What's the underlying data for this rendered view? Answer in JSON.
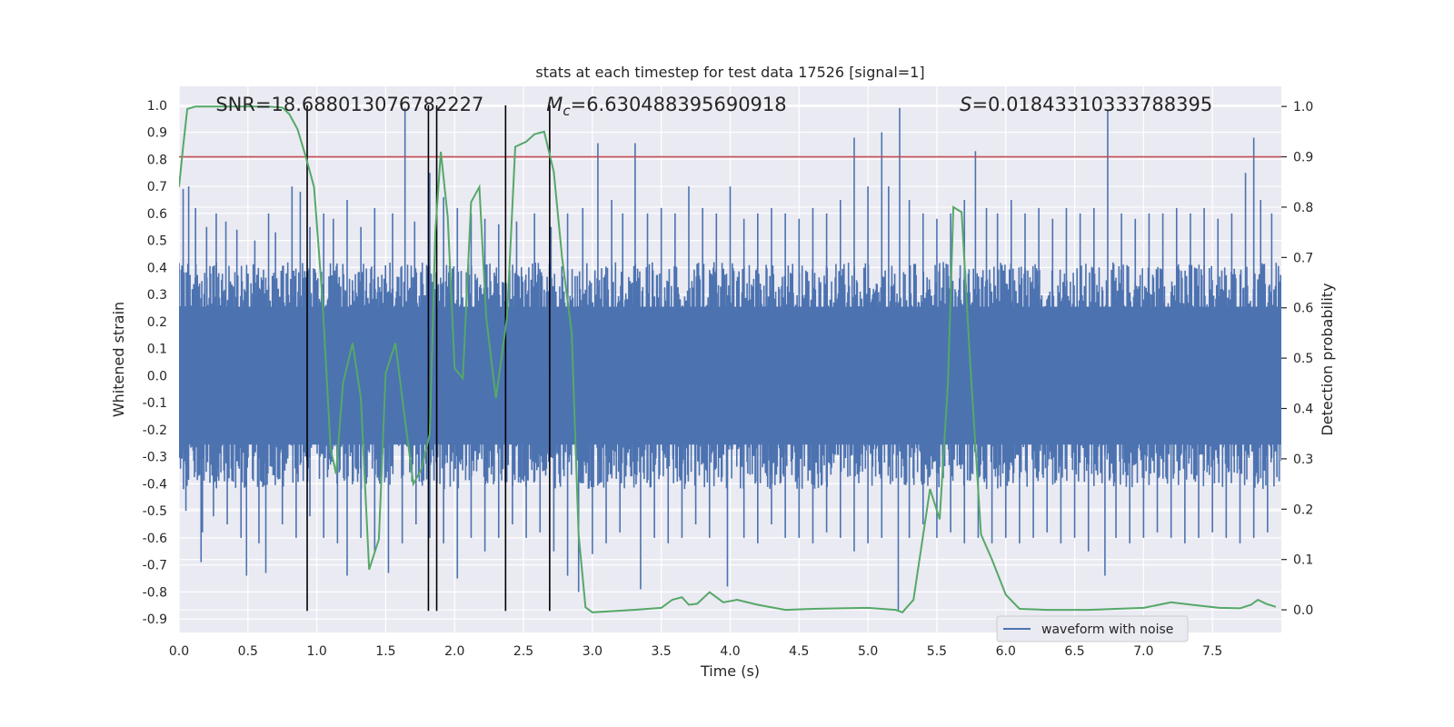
{
  "chart_data": {
    "type": "line",
    "title": "stats at each timestep for test data 17526 [signal=1]",
    "xlabel": "Time (s)",
    "ylabel": "Whitened strain",
    "y2label": "Detection probability",
    "xlim": [
      0.0,
      8.0
    ],
    "ylim": [
      -0.95,
      1.07
    ],
    "y2lim": [
      -0.045,
      1.04
    ],
    "x_ticks": [
      0.0,
      0.5,
      1.0,
      1.5,
      2.0,
      2.5,
      3.0,
      3.5,
      4.0,
      4.5,
      5.0,
      5.5,
      6.0,
      6.5,
      7.0,
      7.5
    ],
    "y_ticks": [
      -0.9,
      -0.8,
      -0.7,
      -0.6,
      -0.5,
      -0.4,
      -0.3,
      -0.2,
      -0.1,
      0.0,
      0.1,
      0.2,
      0.3,
      0.4,
      0.5,
      0.6,
      0.7,
      0.8,
      0.9,
      1.0
    ],
    "y2_ticks": [
      0.0,
      0.1,
      0.2,
      0.3,
      0.4,
      0.5,
      0.6,
      0.7,
      0.8,
      0.9,
      1.0
    ],
    "grid": true,
    "legend_position": "lower-right",
    "annotations": [
      {
        "name": "snr",
        "pieces": [
          {
            "t": "SNR=18.688013076782227",
            "i": false
          }
        ],
        "x": 0.2
      },
      {
        "name": "chirp-mass",
        "pieces": [
          {
            "t": "M",
            "i": true
          },
          {
            "t": "c",
            "i": true,
            "sub": true
          },
          {
            "t": "=6.630488395690918",
            "i": false
          }
        ],
        "x": 2.6
      },
      {
        "name": "spin",
        "pieces": [
          {
            "t": "S",
            "i": true
          },
          {
            "t": "=0.01843310333788395",
            "i": false
          }
        ],
        "x": 5.6
      }
    ],
    "waveform": {
      "name": "waveform with noise",
      "color": "#4c72b0",
      "bulk_envelope": {
        "lower": -0.3,
        "upper": 0.3
      },
      "spikes_up": [
        [
          0.03,
          0.69
        ],
        [
          0.07,
          0.7
        ],
        [
          0.12,
          0.62
        ],
        [
          0.2,
          0.55
        ],
        [
          0.27,
          0.6
        ],
        [
          0.34,
          0.57
        ],
        [
          0.42,
          0.54
        ],
        [
          0.55,
          0.5
        ],
        [
          0.65,
          0.6
        ],
        [
          0.7,
          0.53
        ],
        [
          0.82,
          0.7
        ],
        [
          0.88,
          0.68
        ],
        [
          0.95,
          0.55
        ],
        [
          1.05,
          0.6
        ],
        [
          1.12,
          0.58
        ],
        [
          1.22,
          0.65
        ],
        [
          1.32,
          0.55
        ],
        [
          1.42,
          0.62
        ],
        [
          1.55,
          0.6
        ],
        [
          1.64,
          0.99
        ],
        [
          1.71,
          0.57
        ],
        [
          1.82,
          0.75
        ],
        [
          1.92,
          0.66
        ],
        [
          2.02,
          0.62
        ],
        [
          2.12,
          0.6
        ],
        [
          2.22,
          0.58
        ],
        [
          2.32,
          0.56
        ],
        [
          2.45,
          0.57
        ],
        [
          2.58,
          0.6
        ],
        [
          2.7,
          0.55
        ],
        [
          2.82,
          0.6
        ],
        [
          2.93,
          0.62
        ],
        [
          3.04,
          0.86
        ],
        [
          3.14,
          0.65
        ],
        [
          3.22,
          0.6
        ],
        [
          3.31,
          0.86
        ],
        [
          3.4,
          0.6
        ],
        [
          3.5,
          0.62
        ],
        [
          3.6,
          0.6
        ],
        [
          3.7,
          0.7
        ],
        [
          3.8,
          0.62
        ],
        [
          3.9,
          0.6
        ],
        [
          4.0,
          0.7
        ],
        [
          4.1,
          0.58
        ],
        [
          4.2,
          0.6
        ],
        [
          4.3,
          0.62
        ],
        [
          4.4,
          0.6
        ],
        [
          4.5,
          0.58
        ],
        [
          4.6,
          0.62
        ],
        [
          4.7,
          0.6
        ],
        [
          4.8,
          0.65
        ],
        [
          4.9,
          0.88
        ],
        [
          5.0,
          0.7
        ],
        [
          5.1,
          0.9
        ],
        [
          5.15,
          0.7
        ],
        [
          5.23,
          0.99
        ],
        [
          5.3,
          0.65
        ],
        [
          5.4,
          0.6
        ],
        [
          5.5,
          0.58
        ],
        [
          5.6,
          0.6
        ],
        [
          5.7,
          0.65
        ],
        [
          5.78,
          0.83
        ],
        [
          5.86,
          0.62
        ],
        [
          5.94,
          0.6
        ],
        [
          6.04,
          0.65
        ],
        [
          6.14,
          0.6
        ],
        [
          6.24,
          0.62
        ],
        [
          6.34,
          0.58
        ],
        [
          6.44,
          0.62
        ],
        [
          6.54,
          0.6
        ],
        [
          6.64,
          0.62
        ],
        [
          6.74,
          0.98
        ],
        [
          6.84,
          0.6
        ],
        [
          6.94,
          0.58
        ],
        [
          7.04,
          0.6
        ],
        [
          7.14,
          0.6
        ],
        [
          7.24,
          0.62
        ],
        [
          7.34,
          0.6
        ],
        [
          7.44,
          0.62
        ],
        [
          7.54,
          0.58
        ],
        [
          7.64,
          0.6
        ],
        [
          7.74,
          0.75
        ],
        [
          7.8,
          0.88
        ],
        [
          7.85,
          0.65
        ],
        [
          7.93,
          0.6
        ]
      ],
      "spikes_down": [
        [
          0.05,
          -0.5
        ],
        [
          0.17,
          -0.58
        ],
        [
          0.16,
          -0.69
        ],
        [
          0.25,
          -0.52
        ],
        [
          0.35,
          -0.55
        ],
        [
          0.45,
          -0.6
        ],
        [
          0.49,
          -0.74
        ],
        [
          0.58,
          -0.62
        ],
        [
          0.63,
          -0.73
        ],
        [
          0.75,
          -0.55
        ],
        [
          0.85,
          -0.6
        ],
        [
          0.95,
          -0.52
        ],
        [
          1.05,
          -0.6
        ],
        [
          1.15,
          -0.62
        ],
        [
          1.22,
          -0.74
        ],
        [
          1.32,
          -0.6
        ],
        [
          1.42,
          -0.65
        ],
        [
          1.52,
          -0.73
        ],
        [
          1.62,
          -0.62
        ],
        [
          1.72,
          -0.55
        ],
        [
          1.82,
          -0.6
        ],
        [
          1.92,
          -0.62
        ],
        [
          2.02,
          -0.75
        ],
        [
          2.12,
          -0.6
        ],
        [
          2.22,
          -0.65
        ],
        [
          2.32,
          -0.6
        ],
        [
          2.42,
          -0.55
        ],
        [
          2.52,
          -0.6
        ],
        [
          2.62,
          -0.58
        ],
        [
          2.72,
          -0.65
        ],
        [
          2.82,
          -0.74
        ],
        [
          2.9,
          -0.8
        ],
        [
          3.0,
          -0.66
        ],
        [
          3.1,
          -0.62
        ],
        [
          3.2,
          -0.58
        ],
        [
          3.35,
          -0.79
        ],
        [
          3.45,
          -0.6
        ],
        [
          3.55,
          -0.62
        ],
        [
          3.65,
          -0.6
        ],
        [
          3.75,
          -0.55
        ],
        [
          3.85,
          -0.6
        ],
        [
          3.98,
          -0.78
        ],
        [
          4.1,
          -0.6
        ],
        [
          4.2,
          -0.62
        ],
        [
          4.3,
          -0.55
        ],
        [
          4.4,
          -0.6
        ],
        [
          4.5,
          -0.6
        ],
        [
          4.6,
          -0.62
        ],
        [
          4.7,
          -0.58
        ],
        [
          4.8,
          -0.6
        ],
        [
          4.9,
          -0.65
        ],
        [
          5.0,
          -0.62
        ],
        [
          5.1,
          -0.6
        ],
        [
          5.22,
          -0.87
        ],
        [
          5.3,
          -0.6
        ],
        [
          5.4,
          -0.55
        ],
        [
          5.5,
          -0.6
        ],
        [
          5.6,
          -0.58
        ],
        [
          5.7,
          -0.62
        ],
        [
          5.8,
          -0.6
        ],
        [
          5.9,
          -0.62
        ],
        [
          6.0,
          -0.6
        ],
        [
          6.1,
          -0.62
        ],
        [
          6.2,
          -0.6
        ],
        [
          6.3,
          -0.58
        ],
        [
          6.4,
          -0.62
        ],
        [
          6.5,
          -0.6
        ],
        [
          6.6,
          -0.65
        ],
        [
          6.72,
          -0.74
        ],
        [
          6.8,
          -0.6
        ],
        [
          6.9,
          -0.62
        ],
        [
          7.0,
          -0.6
        ],
        [
          7.1,
          -0.58
        ],
        [
          7.2,
          -0.6
        ],
        [
          7.3,
          -0.62
        ],
        [
          7.4,
          -0.6
        ],
        [
          7.5,
          -0.58
        ],
        [
          7.6,
          -0.6
        ],
        [
          7.7,
          -0.62
        ],
        [
          7.8,
          -0.6
        ],
        [
          7.9,
          -0.58
        ]
      ]
    },
    "detection_probability": {
      "color": "#55a868",
      "points": [
        [
          0.0,
          0.84
        ],
        [
          0.03,
          0.92
        ],
        [
          0.06,
          0.995
        ],
        [
          0.12,
          1.0
        ],
        [
          0.3,
          1.0
        ],
        [
          0.5,
          1.0
        ],
        [
          0.65,
          1.0
        ],
        [
          0.75,
          0.998
        ],
        [
          0.8,
          0.985
        ],
        [
          0.86,
          0.955
        ],
        [
          0.92,
          0.9
        ],
        [
          0.98,
          0.84
        ],
        [
          1.04,
          0.62
        ],
        [
          1.1,
          0.32
        ],
        [
          1.14,
          0.27
        ],
        [
          1.19,
          0.45
        ],
        [
          1.26,
          0.53
        ],
        [
          1.32,
          0.42
        ],
        [
          1.38,
          0.08
        ],
        [
          1.45,
          0.14
        ],
        [
          1.5,
          0.47
        ],
        [
          1.57,
          0.53
        ],
        [
          1.63,
          0.4
        ],
        [
          1.7,
          0.25
        ],
        [
          1.76,
          0.28
        ],
        [
          1.82,
          0.35
        ],
        [
          1.86,
          0.75
        ],
        [
          1.9,
          0.91
        ],
        [
          1.95,
          0.78
        ],
        [
          2.0,
          0.48
        ],
        [
          2.06,
          0.46
        ],
        [
          2.12,
          0.81
        ],
        [
          2.18,
          0.84
        ],
        [
          2.23,
          0.58
        ],
        [
          2.3,
          0.42
        ],
        [
          2.38,
          0.58
        ],
        [
          2.44,
          0.92
        ],
        [
          2.52,
          0.93
        ],
        [
          2.58,
          0.945
        ],
        [
          2.65,
          0.95
        ],
        [
          2.72,
          0.87
        ],
        [
          2.78,
          0.7
        ],
        [
          2.85,
          0.55
        ],
        [
          2.9,
          0.15
        ],
        [
          2.95,
          0.005
        ],
        [
          3.0,
          -0.005
        ],
        [
          3.3,
          0.0
        ],
        [
          3.5,
          0.004
        ],
        [
          3.58,
          0.02
        ],
        [
          3.65,
          0.025
        ],
        [
          3.7,
          0.01
        ],
        [
          3.76,
          0.012
        ],
        [
          3.85,
          0.035
        ],
        [
          3.95,
          0.015
        ],
        [
          4.05,
          0.02
        ],
        [
          4.2,
          0.01
        ],
        [
          4.4,
          0.0
        ],
        [
          4.6,
          0.002
        ],
        [
          4.8,
          0.003
        ],
        [
          5.0,
          0.004
        ],
        [
          5.1,
          0.002
        ],
        [
          5.2,
          0.0
        ],
        [
          5.25,
          -0.005
        ],
        [
          5.33,
          0.02
        ],
        [
          5.45,
          0.24
        ],
        [
          5.52,
          0.18
        ],
        [
          5.58,
          0.45
        ],
        [
          5.62,
          0.8
        ],
        [
          5.68,
          0.79
        ],
        [
          5.74,
          0.5
        ],
        [
          5.82,
          0.15
        ],
        [
          5.9,
          0.1
        ],
        [
          6.0,
          0.03
        ],
        [
          6.1,
          0.002
        ],
        [
          6.3,
          0.0
        ],
        [
          6.6,
          0.0
        ],
        [
          6.8,
          0.002
        ],
        [
          7.0,
          0.004
        ],
        [
          7.2,
          0.015
        ],
        [
          7.35,
          0.01
        ],
        [
          7.55,
          0.004
        ],
        [
          7.7,
          0.003
        ],
        [
          7.78,
          0.01
        ],
        [
          7.83,
          0.02
        ],
        [
          7.89,
          0.012
        ],
        [
          7.96,
          0.006
        ]
      ]
    },
    "threshold": {
      "y2": 0.9,
      "color": "#c44e52"
    },
    "vertical_markers": {
      "x": [
        0.93,
        1.81,
        1.87,
        2.37,
        2.69
      ],
      "ymin": -0.87,
      "ymax": 1.0,
      "color": "#000000"
    }
  }
}
